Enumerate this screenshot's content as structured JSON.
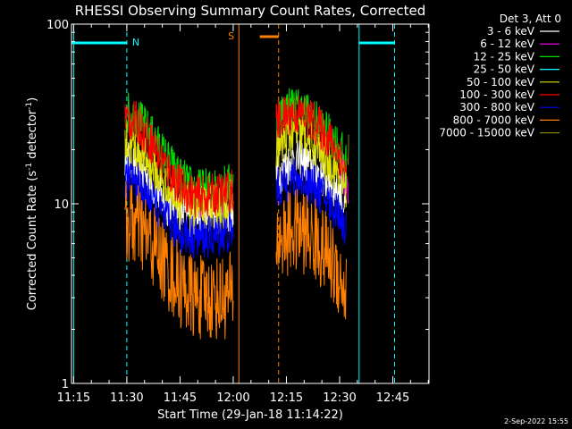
{
  "chart_data": {
    "type": "line",
    "title": "RHESSI Observing Summary Count Rates, Corrected",
    "xlabel": "Start Time (29-Jan-18 11:14:22)",
    "ylabel_main": "Corrected Count Rate (s",
    "ylabel_sup1": "-1",
    "ylabel_mid": " detector",
    "ylabel_sup2": "-1",
    "ylabel_end": ")",
    "y_scale": "log",
    "ylim": [
      1,
      100
    ],
    "xlim_minutes": [
      674.4,
      775.2
    ],
    "x_ticks": [
      {
        "label": "11:15",
        "m": 675
      },
      {
        "label": "11:30",
        "m": 690
      },
      {
        "label": "11:45",
        "m": 705
      },
      {
        "label": "12:00",
        "m": 720
      },
      {
        "label": "12:15",
        "m": 735
      },
      {
        "label": "12:30",
        "m": 750
      },
      {
        "label": "12:45",
        "m": 765
      }
    ],
    "y_ticks": [
      {
        "label": "1",
        "v": 1
      },
      {
        "label": "10",
        "v": 10
      },
      {
        "label": "100",
        "v": 100
      }
    ],
    "legend_header": "Det 3, Att 0",
    "legend_position": "top-right outside",
    "series": [
      {
        "name": "3 - 6 keV",
        "color": "#ffffff",
        "points": [
          [
            689.5,
            18
          ],
          [
            693,
            16
          ],
          [
            697,
            13
          ],
          [
            701,
            10
          ],
          [
            705,
            9
          ],
          [
            709,
            8.5
          ],
          [
            713,
            8.5
          ],
          [
            717,
            8.8
          ],
          [
            720,
            8.8
          ],
          [
            732,
            14
          ],
          [
            736,
            17
          ],
          [
            740,
            17.5
          ],
          [
            744,
            15
          ],
          [
            747,
            13
          ],
          [
            750,
            12
          ],
          [
            752,
            9
          ]
        ]
      },
      {
        "name": "6 - 12 keV",
        "color": "#ff00ff",
        "points": [
          [
            750,
            16
          ],
          [
            751.5,
            14
          ],
          [
            752.5,
            10
          ]
        ]
      },
      {
        "name": "12 - 25 keV",
        "color": "#00e000",
        "points": [
          [
            689.5,
            33
          ],
          [
            693,
            30
          ],
          [
            697,
            24
          ],
          [
            701,
            18
          ],
          [
            705,
            14
          ],
          [
            709,
            12
          ],
          [
            713,
            12
          ],
          [
            717,
            12.5
          ],
          [
            720,
            13
          ],
          [
            732,
            30
          ],
          [
            736,
            35
          ],
          [
            740,
            33
          ],
          [
            744,
            28
          ],
          [
            747,
            24
          ],
          [
            750,
            21
          ],
          [
            752,
            16
          ]
        ]
      },
      {
        "name": "25 - 50 keV",
        "color": "#00ffff",
        "points": []
      },
      {
        "name": "50 - 100 keV",
        "color": "#e0e000",
        "points": [
          [
            689.5,
            22
          ],
          [
            693,
            20
          ],
          [
            697,
            16
          ],
          [
            701,
            12.5
          ],
          [
            705,
            10.5
          ],
          [
            709,
            9.5
          ],
          [
            713,
            9.5
          ],
          [
            717,
            10
          ],
          [
            720,
            10.5
          ],
          [
            732,
            20
          ],
          [
            736,
            24
          ],
          [
            740,
            24
          ],
          [
            744,
            20
          ],
          [
            747,
            17
          ],
          [
            750,
            15
          ],
          [
            752,
            12
          ]
        ]
      },
      {
        "name": "100 - 300 keV",
        "color": "#ff0000",
        "points": [
          [
            689.5,
            30
          ],
          [
            693,
            28
          ],
          [
            697,
            22
          ],
          [
            701,
            16
          ],
          [
            705,
            12.5
          ],
          [
            709,
            11
          ],
          [
            713,
            11
          ],
          [
            717,
            11.5
          ],
          [
            720,
            12
          ],
          [
            732,
            28
          ],
          [
            736,
            32
          ],
          [
            740,
            31
          ],
          [
            744,
            27
          ],
          [
            747,
            23
          ],
          [
            750,
            19
          ],
          [
            752,
            14
          ]
        ]
      },
      {
        "name": "300 - 800 keV",
        "color": "#0000ff",
        "points": [
          [
            689.5,
            14
          ],
          [
            693,
            13
          ],
          [
            697,
            10.5
          ],
          [
            701,
            8
          ],
          [
            705,
            7
          ],
          [
            709,
            6.5
          ],
          [
            713,
            6.5
          ],
          [
            717,
            6.8
          ],
          [
            720,
            7
          ],
          [
            732,
            12
          ],
          [
            736,
            13.5
          ],
          [
            740,
            13.5
          ],
          [
            744,
            12
          ],
          [
            747,
            10
          ],
          [
            750,
            9
          ],
          [
            752,
            7
          ]
        ]
      },
      {
        "name": "800 - 7000 keV",
        "color": "#ff8000",
        "points": [
          [
            689.5,
            8
          ],
          [
            693,
            7.5
          ],
          [
            697,
            6
          ],
          [
            701,
            4.5
          ],
          [
            705,
            3.5
          ],
          [
            709,
            3
          ],
          [
            713,
            3
          ],
          [
            717,
            3
          ],
          [
            720,
            3.2
          ],
          [
            732,
            6
          ],
          [
            736,
            7
          ],
          [
            740,
            7
          ],
          [
            744,
            6
          ],
          [
            747,
            5
          ],
          [
            750,
            4
          ],
          [
            752,
            3
          ]
        ]
      },
      {
        "name": "7000 - 15000 keV",
        "color": "#808000",
        "points": [
          [
            752.3,
            20
          ],
          [
            752.5,
            22
          ],
          [
            752.7,
            19
          ]
        ]
      }
    ],
    "flags": {
      "n_label": "N",
      "s_label": "S",
      "n_color": "#00ffff",
      "s_color": "#ff8000",
      "night_bars": [
        [
          674.4,
          690
        ],
        [
          755.5,
          765.5
        ]
      ],
      "night_dashes": [
        690,
        765.5
      ],
      "night_solid": [
        675,
        755.5
      ],
      "saa_bar": [
        727.5,
        732.8
      ],
      "saa_solid": 721.6,
      "saa_dash": 732.8
    }
  },
  "footer_date": "2-Sep-2022 15:55"
}
